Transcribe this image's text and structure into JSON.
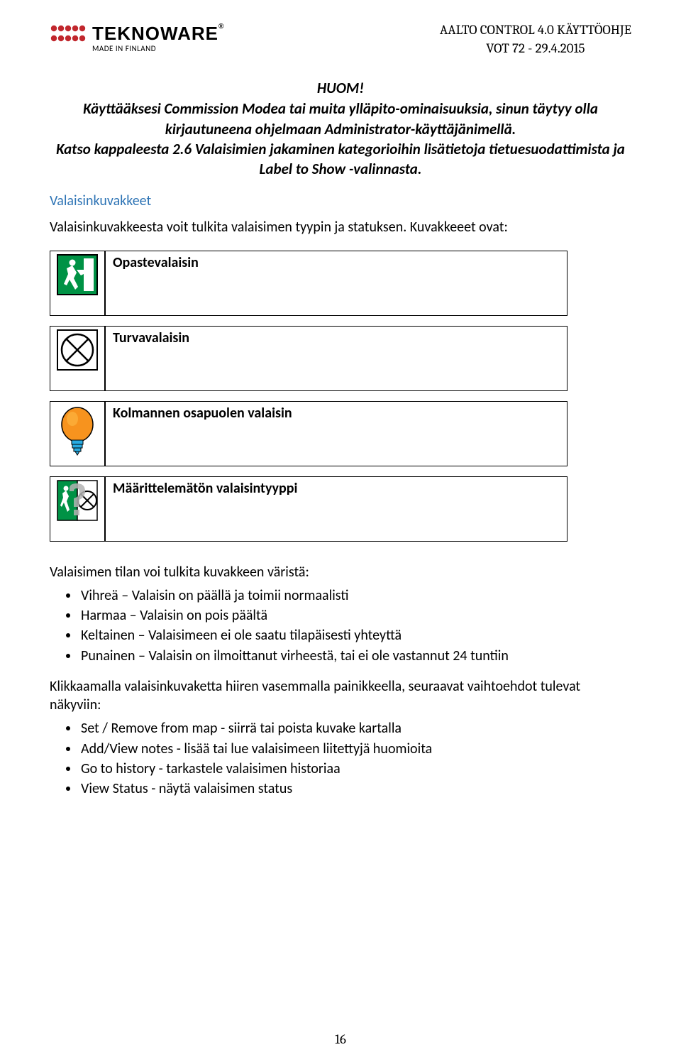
{
  "header": {
    "logo_brand": "TEKNOWARE",
    "logo_reg": "®",
    "logo_sub": "MADE IN FINLAND",
    "doc_line1": "AALTO CONTROL 4.0 KÄYTTÖOHJE",
    "doc_line2": "VOT 72 - 29.4.2015",
    "dot_color": "#c1272d"
  },
  "huom": "HUOM!",
  "intro": "Käyttääksesi Commission Modea tai muita ylläpito-ominaisuuksia, sinun täytyy olla kirjautuneena ohjelmaan Administrator-käyttäjänimellä.\nKatso kappaleesta 2.6 Valaisimien jakaminen kategorioihin lisätietoja tietuesuodattimista ja Label to Show -valinnasta.",
  "section_heading": "Valaisinkuvakkeet",
  "section_intro": "Valaisinkuvakkeesta voit tulkita valaisimen tyypin ja statuksen. Kuvakkeeet ovat:",
  "icons": {
    "exit_green": "#009245",
    "exit_white": "#ffffff",
    "lamp_body": "#f7931e",
    "lamp_highlight": "#fbb03b",
    "lamp_base": "#29abe2",
    "border": "#000000",
    "grey": "#b3b3b3"
  },
  "luminaire_rows": [
    {
      "label": "Opastevalaisin",
      "icon": "exit"
    },
    {
      "label": "Turvavalaisin",
      "icon": "cross-circle"
    },
    {
      "label": "Kolmannen osapuolen valaisin",
      "icon": "bulb"
    },
    {
      "label": "Määrittelemätön valaisintyyppi",
      "icon": "undefined"
    }
  ],
  "color_intro": "Valaisimen tilan voi tulkita kuvakkeen väristä:",
  "color_list": [
    "Vihreä – Valaisin on päällä ja toimii normaalisti",
    "Harmaa – Valaisin on pois päältä",
    "Keltainen – Valaisimeen ei ole saatu tilapäisesti yhteyttä",
    "Punainen – Valaisin on ilmoittanut virheestä, tai ei ole vastannut 24 tuntiin"
  ],
  "click_intro": "Klikkaamalla valaisinkuvaketta hiiren vasemmalla painikkeella, seuraavat vaihtoehdot tulevat näkyviin:",
  "click_list": [
    "Set / Remove from map - siirrä tai poista kuvake kartalla",
    "Add/View notes - lisää tai lue valaisimeen liitettyjä huomioita",
    "Go to history - tarkastele valaisimen historiaa",
    "View Status - näytä valaisimen status"
  ],
  "page_number": "16"
}
